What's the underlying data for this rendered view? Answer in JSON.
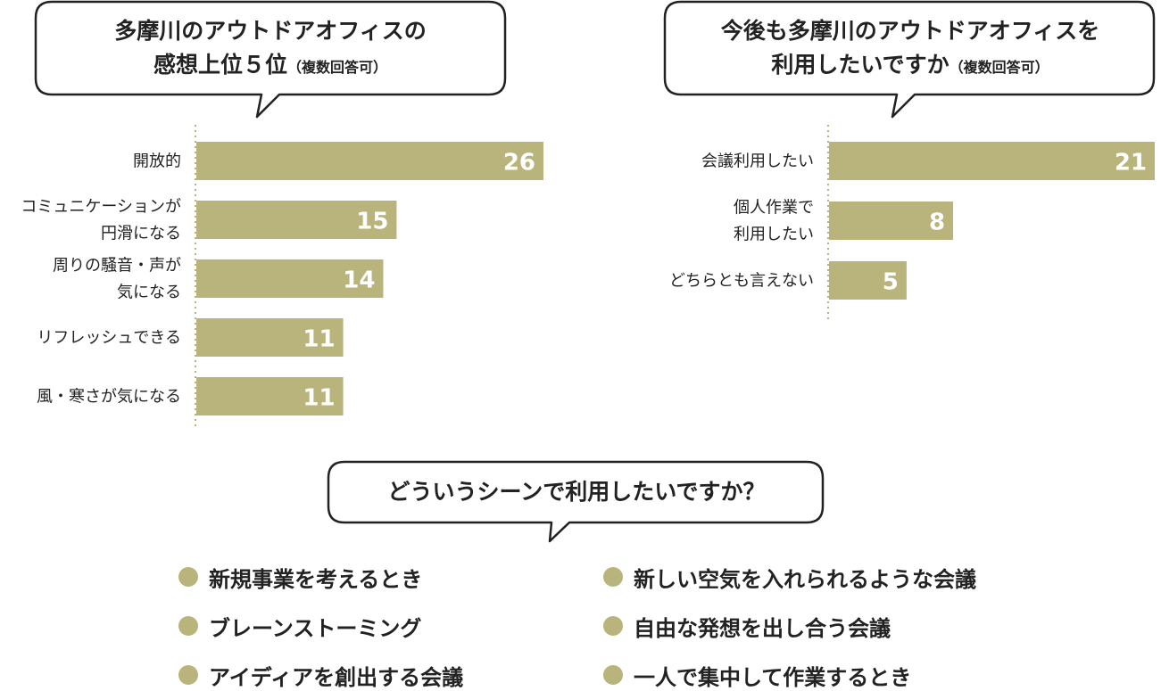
{
  "colors": {
    "bar": "#b8b47b",
    "bar_text": "#ffffff",
    "dot": "#b8b47b",
    "axis": "#b8b47b",
    "bubble_stroke": "#222222"
  },
  "bubbles": {
    "left": {
      "line1": "多摩川のアウトドアオフィスの",
      "line2": "感想上位５位",
      "note": "（複数回答可）"
    },
    "right": {
      "line1": "今後も多摩川のアウトドアオフィスを",
      "line2": "利用したいですか",
      "note": "（複数回答可）"
    },
    "bottom": {
      "line1": "どういうシーンで利用したいですか？"
    }
  },
  "chart_data": [
    {
      "type": "bar",
      "orientation": "horizontal",
      "categories": [
        "開放的",
        "コミュニケーションが\n円滑になる",
        "周りの騒音・声が\n気になる",
        "リフレッシュできる",
        "風・寒さが気になる"
      ],
      "values": [
        26,
        15,
        14,
        11,
        11
      ],
      "xlim": [
        0,
        26
      ],
      "data_labels": true
    },
    {
      "type": "bar",
      "orientation": "horizontal",
      "categories": [
        "会議利用したい",
        "個人作業で\n利用したい",
        "どちらとも言えない"
      ],
      "values": [
        21,
        8,
        5
      ],
      "xlim": [
        0,
        21
      ],
      "data_labels": true
    }
  ],
  "scenes": [
    "新規事業を考えるとき",
    "新しい空気を入れられるような会議",
    "ブレーンストーミング",
    "自由な発想を出し合う会議",
    "アイディアを創出する会議",
    "一人で集中して作業するとき"
  ]
}
